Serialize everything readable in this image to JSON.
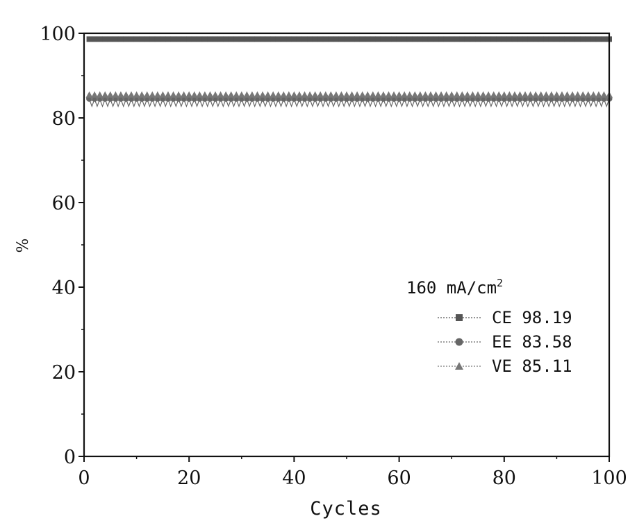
{
  "chart_data": {
    "type": "line",
    "xlabel": "Cycles",
    "ylabel": "%",
    "xlim": [
      0,
      100
    ],
    "ylim": [
      0,
      100
    ],
    "xticks": [
      "0",
      "20",
      "40",
      "60",
      "80",
      "100"
    ],
    "yticks": [
      "0",
      "20",
      "40",
      "60",
      "80",
      "100"
    ],
    "legend_title": "160 mA/cm",
    "legend_title_sup": "2",
    "legend_position": "lower-right",
    "series": [
      {
        "name": "CE 98.19",
        "marker": "square",
        "color": "#555555",
        "mean": 98.19,
        "amplitude": 0.6
      },
      {
        "name": "EE 83.58",
        "marker": "circle",
        "color": "#666666",
        "mean": 83.58,
        "amplitude": 1.0
      },
      {
        "name": "VE 85.11",
        "marker": "triangle",
        "color": "#777777",
        "mean": 85.11,
        "amplitude": 1.0
      }
    ],
    "cycles": {
      "start": 1,
      "end": 100
    }
  }
}
